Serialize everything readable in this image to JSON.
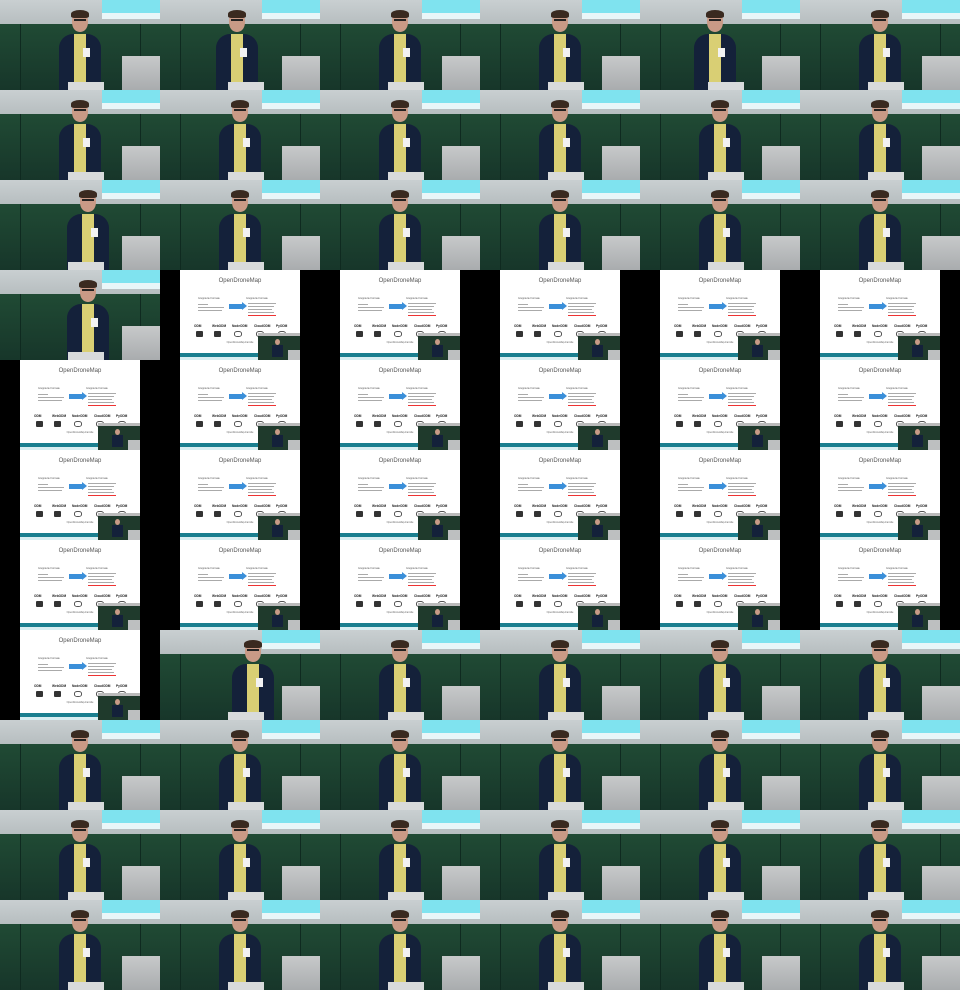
{
  "slide": {
    "title": "OpenDroneMap",
    "left_header": "Gruppierte Formate",
    "right_header": "Gruppierte Formate",
    "projects": [
      "ODM",
      "WebODM",
      "NodeODM",
      "CloudODM",
      "PyODM"
    ],
    "footer": "OpenDroneMap-Familie"
  },
  "frames": [
    "speaker",
    "speaker",
    "speaker",
    "speaker",
    "speaker",
    "speaker",
    "speaker",
    "speaker",
    "speaker",
    "speaker",
    "speaker",
    "speaker",
    "speaker",
    "speaker",
    "speaker",
    "speaker",
    "speaker",
    "speaker",
    "speaker",
    "slide-right",
    "slide-right",
    "slide-right",
    "slide-right",
    "slide-right",
    "slide-left",
    "slide-right",
    "slide-right",
    "slide-right",
    "slide-right",
    "slide-right",
    "slide-left",
    "slide-right",
    "slide-right",
    "slide-right",
    "slide-right",
    "slide-right",
    "slide-left",
    "slide-right",
    "slide-right",
    "slide-right",
    "slide-right",
    "slide-right",
    "slide-left",
    "speaker",
    "speaker",
    "speaker",
    "speaker",
    "speaker",
    "speaker",
    "speaker",
    "speaker",
    "speaker",
    "speaker",
    "speaker",
    "speaker",
    "speaker",
    "speaker",
    "speaker",
    "speaker",
    "speaker",
    "speaker",
    "speaker",
    "speaker",
    "speaker",
    "speaker",
    "speaker"
  ],
  "speaker_offsets": [
    0.5,
    0.48,
    0.5,
    0.5,
    0.47,
    0.5,
    0.5,
    0.5,
    0.5,
    0.5,
    0.5,
    0.5,
    0.55,
    0.5,
    0.5,
    0.5,
    0.5,
    0.5,
    0.55,
    0,
    0,
    0,
    0,
    0,
    0,
    0,
    0,
    0,
    0,
    0,
    0,
    0,
    0,
    0,
    0,
    0,
    0,
    0,
    0,
    0,
    0,
    0,
    0,
    0.58,
    0.5,
    0.5,
    0.5,
    0.5,
    0.5,
    0.5,
    0.5,
    0.5,
    0.5,
    0.5,
    0.5,
    0.5,
    0.5,
    0.5,
    0.5,
    0.5,
    0.5,
    0.5,
    0.5,
    0.5,
    0.5,
    0.5
  ]
}
